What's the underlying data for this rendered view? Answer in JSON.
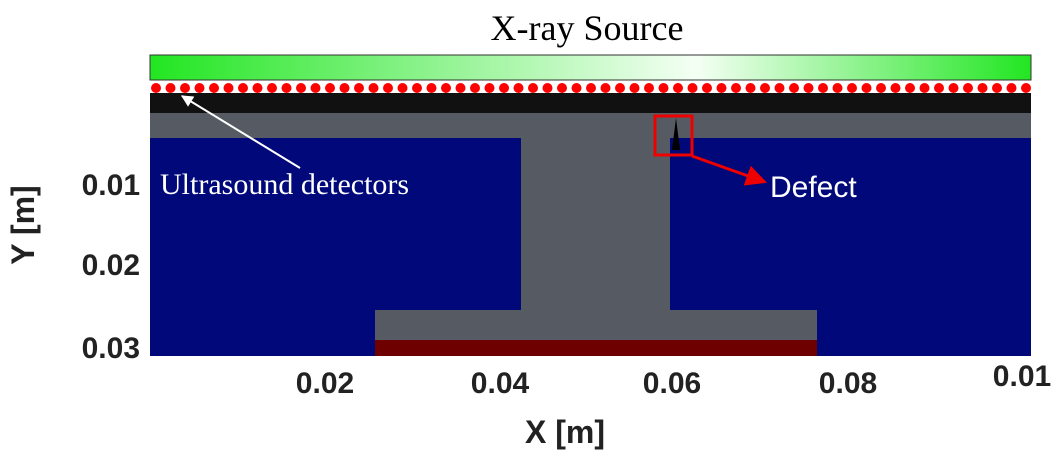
{
  "title": "X-ray Source",
  "labels": {
    "detectors": "Ultrasound detectors",
    "defect": "Defect"
  },
  "axes": {
    "y": {
      "label": "Y [m]",
      "ticks": [
        "0.01",
        "0.02",
        "0.03"
      ]
    },
    "x": {
      "label": "X [m]",
      "ticks": [
        "0.02",
        "0.04",
        "0.06",
        "0.08",
        "0.01"
      ]
    }
  }
}
